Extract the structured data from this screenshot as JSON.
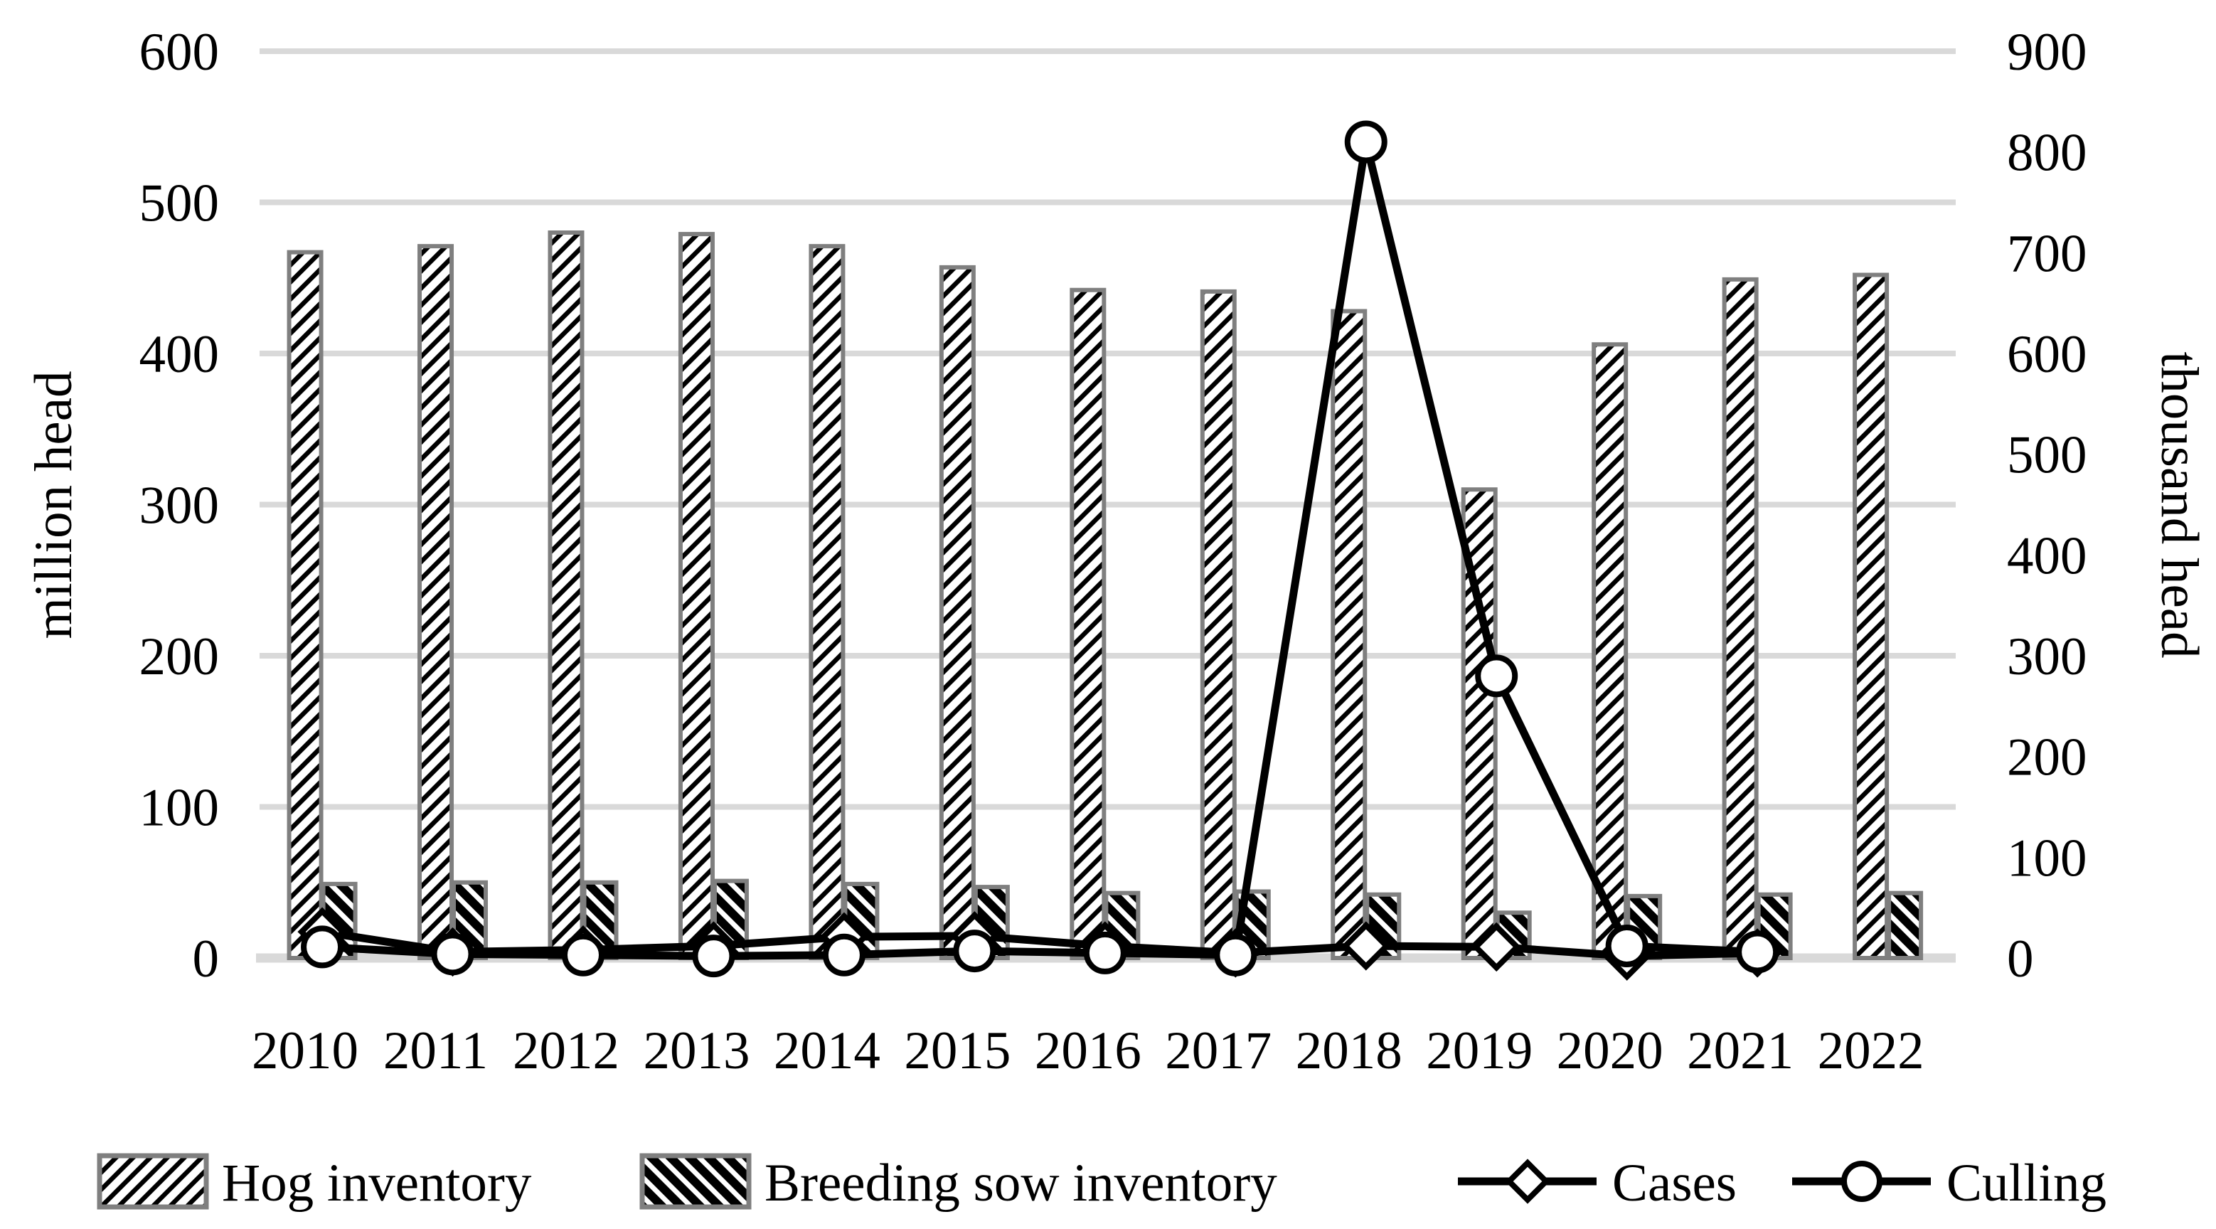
{
  "figure": {
    "background": "#ffffff",
    "axis_left_title": "million head",
    "axis_right_title": "thousand head",
    "legend": {
      "hog_label": "Hog inventory",
      "sow_label": "Breeding sow inventory",
      "cases_label": "Cases",
      "culling_label": "Culling"
    },
    "colors": {
      "grid": "#d9d9d9",
      "bar_outline": "#7f7f7f",
      "hatch": "#000000",
      "series_line": "#000000",
      "marker_fill": "#ffffff",
      "text": "#000000"
    }
  },
  "chart_data": {
    "type": "bar",
    "subtype": "combo-bar-line-dual-axis",
    "title": "",
    "categories": [
      "2010",
      "2011",
      "2012",
      "2013",
      "2014",
      "2015",
      "2016",
      "2017",
      "2018",
      "2019",
      "2020",
      "2021",
      "2022"
    ],
    "xlabel": "",
    "ylabel": "million head",
    "ylabel_right": "thousand head",
    "ylim": [
      0,
      600
    ],
    "ylim_right": [
      0,
      900
    ],
    "yticks": [
      0,
      100,
      200,
      300,
      400,
      500,
      600
    ],
    "yticks_right": [
      0,
      100,
      200,
      300,
      400,
      500,
      600,
      700,
      800,
      900
    ],
    "grid": "horizontal-light-gray",
    "legend_position": "bottom",
    "series": [
      {
        "name": "Hog inventory",
        "type": "bar",
        "axis": "left",
        "pattern": "thin-diagonal-hatch-up",
        "values": [
          467,
          471,
          480,
          479,
          471,
          457,
          442,
          441,
          428,
          310,
          406,
          449,
          452
        ]
      },
      {
        "name": "Breeding sow inventory",
        "type": "bar",
        "axis": "left",
        "pattern": "bold-diagonal-hatch-down",
        "values": [
          49,
          50,
          50,
          51,
          49,
          47,
          43,
          44,
          42,
          30,
          41,
          42,
          43
        ]
      },
      {
        "name": "Cases",
        "type": "line",
        "axis": "right",
        "marker": "diamond",
        "values": [
          26,
          6,
          8,
          12,
          21,
          22,
          12,
          5,
          12,
          11,
          2,
          5,
          null
        ]
      },
      {
        "name": "Culling",
        "type": "line",
        "axis": "right",
        "marker": "circle",
        "values": [
          11,
          4,
          3,
          2,
          3,
          7,
          5,
          3,
          810,
          280,
          12,
          6,
          null
        ]
      }
    ]
  }
}
